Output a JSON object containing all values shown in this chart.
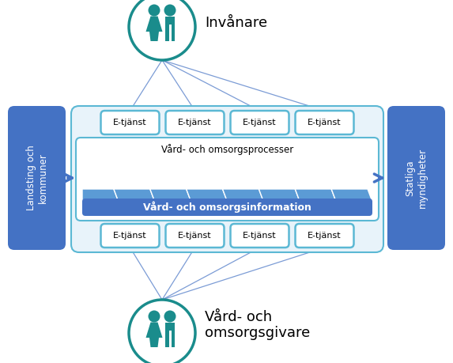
{
  "bg_color": "#ffffff",
  "teal_color": "#1a8c8c",
  "blue_side_color": "#4472c4",
  "blue_side_light": "#5b9bd5",
  "outer_box_bg": "#e8f3fa",
  "outer_box_border": "#5bb8d4",
  "proc_box_bg": "#ffffff",
  "proc_box_border": "#5bb8d4",
  "etjanst_border": "#5bb8d4",
  "etjanst_bg": "#ffffff",
  "chevron_color": "#5b9bd5",
  "info_bar_color": "#4472c4",
  "arrow_color": "#4472c4",
  "line_color": "#4472c4",
  "title_top": "Invånare",
  "title_bottom": "Vård- och\nomsorgsgivare",
  "label_left": "Landsting och\nkommuner",
  "label_right": "Statliga\nmyndigheter",
  "label_process": "Vård- och omsorgsprocesser",
  "label_info": "Vård- och omsorgsinformation",
  "etjanst_label": "E-tjänst",
  "figw": 5.73,
  "figh": 4.59,
  "dpi": 100
}
